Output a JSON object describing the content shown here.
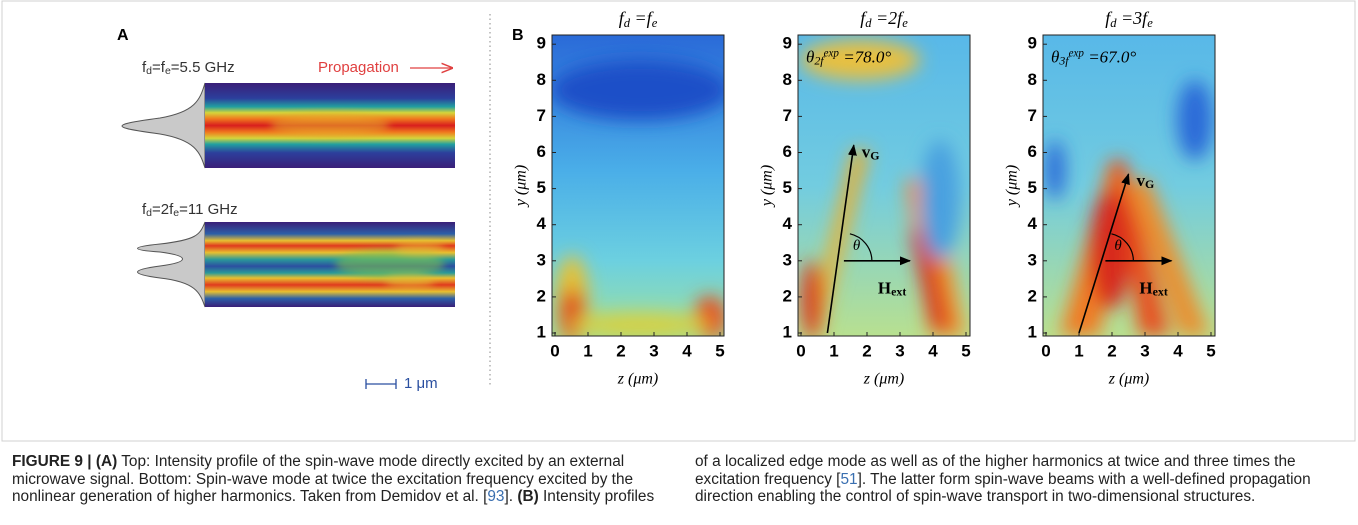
{
  "panel_a": {
    "label": "A",
    "top_label": [
      {
        "t": "f"
      },
      {
        "t": "d",
        "sub": true
      },
      {
        "t": "=f"
      },
      {
        "t": "e",
        "sub": true
      },
      {
        "t": "=5.5 GHz"
      }
    ],
    "propagation": "Propagation",
    "bottom_label": [
      {
        "t": "f"
      },
      {
        "t": "d",
        "sub": true
      },
      {
        "t": "=2f"
      },
      {
        "t": "e",
        "sub": true
      },
      {
        "t": "=11 GHz"
      }
    ],
    "scale_bar": "1 μm"
  },
  "panel_b": {
    "label": "B",
    "x_label": "z (μm)",
    "y_label": "y (μm)",
    "xticks": [
      0,
      1,
      2,
      3,
      4,
      5
    ],
    "yticks": [
      1,
      2,
      3,
      4,
      5,
      6,
      7,
      8,
      9
    ],
    "plots": [
      {
        "title": [
          {
            "t": "f"
          },
          {
            "t": "d",
            "sub": true
          },
          {
            "t": " =f"
          },
          {
            "t": "e",
            "sub": true
          }
        ]
      },
      {
        "title": [
          {
            "t": "f"
          },
          {
            "t": "d",
            "sub": true
          },
          {
            "t": " =2f"
          },
          {
            "t": "e",
            "sub": true
          }
        ],
        "angle_label": [
          {
            "t": "θ"
          },
          {
            "t": "2f",
            "sub": true
          },
          {
            "t": "exp",
            "sup": true
          },
          {
            "t": " =78.0°"
          }
        ],
        "velocity": [
          {
            "t": "v"
          },
          {
            "t": "G",
            "sub": true
          }
        ],
        "theta": "θ",
        "field": [
          {
            "t": "H"
          },
          {
            "t": "ext",
            "sub": true
          }
        ]
      },
      {
        "title": [
          {
            "t": "f"
          },
          {
            "t": "d",
            "sub": true
          },
          {
            "t": " =3f"
          },
          {
            "t": "e",
            "sub": true
          }
        ],
        "angle_label": [
          {
            "t": "θ"
          },
          {
            "t": "3f",
            "sub": true
          },
          {
            "t": "exp",
            "sup": true
          },
          {
            "t": " =67.0°"
          }
        ],
        "velocity": [
          {
            "t": "v"
          },
          {
            "t": "G",
            "sub": true
          }
        ],
        "theta": "θ",
        "field": [
          {
            "t": "H"
          },
          {
            "t": "ext",
            "sub": true
          }
        ]
      }
    ]
  },
  "caption": [
    {
      "t": "FIGURE 9 | (A)",
      "bold": true
    },
    {
      "t": " Top: Intensity profile of the spin-wave mode directly excited by an external microwave signal. Bottom: Spin-wave mode at twice the excitation frequency excited by the nonlinear generation of higher harmonics. Taken from Demidov et al. ["
    },
    {
      "t": "93",
      "link": true
    },
    {
      "t": "]. "
    },
    {
      "t": "(B)",
      "bold": true
    },
    {
      "t": " Intensity profiles of a localized edge mode as well as of the higher harmonics at twice and three times the excitation frequency ["
    },
    {
      "t": "51",
      "link": true
    },
    {
      "t": "]. The latter form spin-wave beams with a well-defined propagation direction enabling the control of spin-wave transport in two-dimensional structures."
    }
  ]
}
